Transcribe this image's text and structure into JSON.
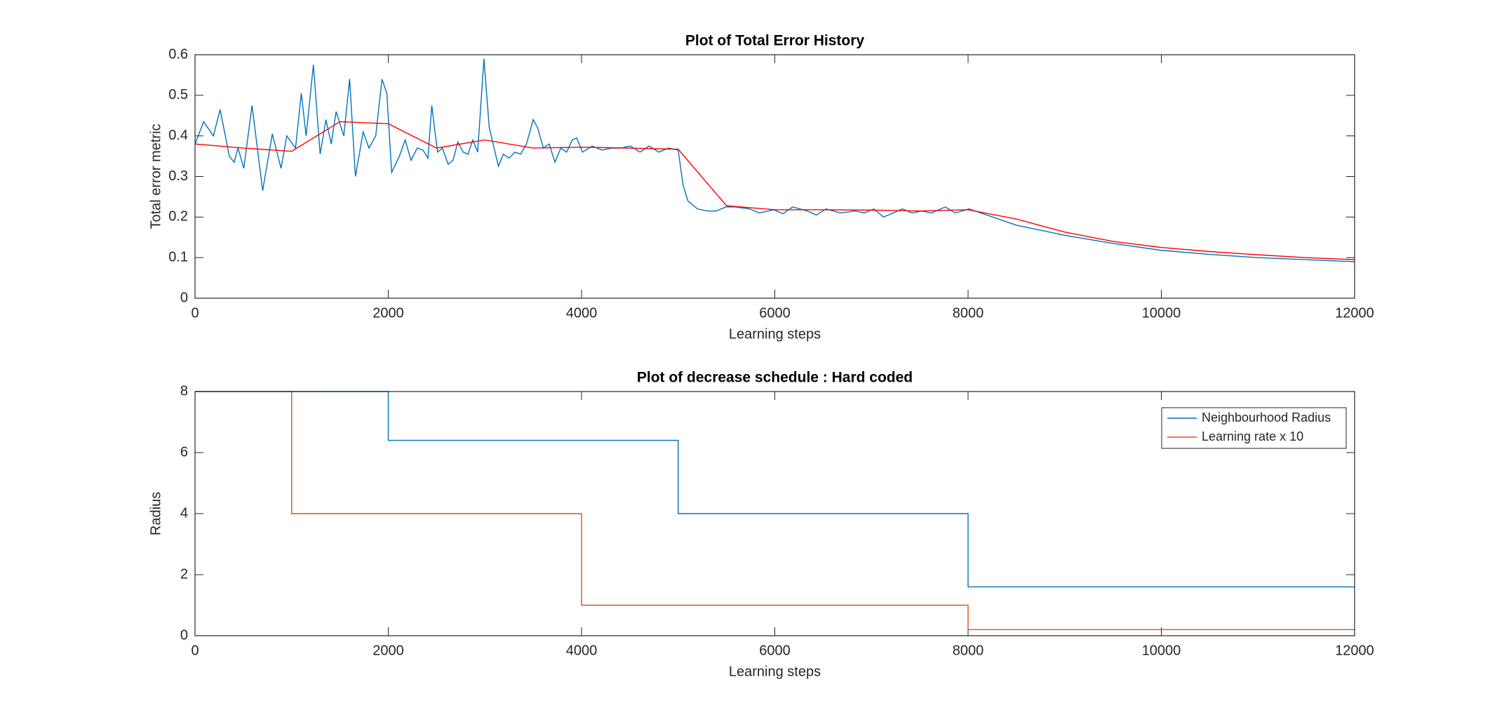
{
  "chart_data": [
    {
      "type": "line",
      "title": "Plot of Total Error History",
      "xlabel": "Learning steps",
      "ylabel": "Total error metric",
      "xlim": [
        0,
        12000
      ],
      "xticks": [
        0,
        2000,
        4000,
        6000,
        8000,
        10000,
        12000
      ],
      "ylim": [
        0,
        0.6
      ],
      "yticks": [
        0,
        0.1,
        0.2,
        0.3,
        0.4,
        0.5,
        0.6
      ],
      "series": [
        {
          "color": "#0072bd",
          "x": [
            0,
            90,
            190,
            260,
            355,
            405,
            445,
            505,
            590,
            700,
            800,
            890,
            950,
            1040,
            1100,
            1150,
            1225,
            1295,
            1355,
            1410,
            1460,
            1540,
            1600,
            1660,
            1740,
            1800,
            1870,
            1935,
            1985,
            2035,
            2115,
            2175,
            2235,
            2300,
            2360,
            2410,
            2450,
            2510,
            2560,
            2620,
            2670,
            2720,
            2775,
            2825,
            2875,
            2925,
            2990,
            3045,
            3095,
            3140,
            3190,
            3250,
            3310,
            3370,
            3430,
            3500,
            3545,
            3605,
            3665,
            3725,
            3785,
            3845,
            3905,
            3950,
            4010,
            4110,
            4210,
            4310,
            4405,
            4505,
            4605,
            4700,
            4800,
            4900,
            5000,
            5050,
            5100,
            5200,
            5300,
            5395,
            5495,
            5590,
            5740,
            5840,
            5990,
            6085,
            6185,
            6335,
            6430,
            6530,
            6680,
            6830,
            6925,
            7025,
            7125,
            7225,
            7320,
            7420,
            7520,
            7620,
            7765,
            7865,
            8010,
            8500,
            9000,
            9500,
            10000,
            10500,
            11000,
            11500,
            12000
          ],
          "values": [
            0.38,
            0.435,
            0.4,
            0.465,
            0.35,
            0.335,
            0.37,
            0.32,
            0.475,
            0.265,
            0.405,
            0.32,
            0.4,
            0.37,
            0.505,
            0.4,
            0.575,
            0.355,
            0.44,
            0.38,
            0.46,
            0.4,
            0.54,
            0.3,
            0.41,
            0.37,
            0.4,
            0.54,
            0.505,
            0.31,
            0.35,
            0.39,
            0.34,
            0.37,
            0.365,
            0.345,
            0.475,
            0.36,
            0.37,
            0.33,
            0.34,
            0.385,
            0.36,
            0.355,
            0.39,
            0.36,
            0.59,
            0.42,
            0.37,
            0.325,
            0.355,
            0.345,
            0.36,
            0.355,
            0.38,
            0.44,
            0.42,
            0.37,
            0.38,
            0.335,
            0.37,
            0.36,
            0.39,
            0.395,
            0.36,
            0.375,
            0.365,
            0.37,
            0.37,
            0.375,
            0.36,
            0.375,
            0.36,
            0.37,
            0.365,
            0.28,
            0.24,
            0.22,
            0.215,
            0.215,
            0.225,
            0.225,
            0.22,
            0.21,
            0.218,
            0.208,
            0.225,
            0.215,
            0.205,
            0.22,
            0.21,
            0.215,
            0.21,
            0.22,
            0.2,
            0.21,
            0.22,
            0.21,
            0.215,
            0.21,
            0.225,
            0.21,
            0.22,
            0.18,
            0.155,
            0.135,
            0.118,
            0.108,
            0.1,
            0.095,
            0.09
          ]
        },
        {
          "color": "#ff0000",
          "x": [
            0,
            500,
            1000,
            1500,
            2000,
            2500,
            3000,
            3500,
            4000,
            4500,
            5000,
            5500,
            6000,
            6500,
            7000,
            7500,
            8000,
            8500,
            9000,
            9500,
            10000,
            10500,
            11000,
            11500,
            12000
          ],
          "values": [
            0.38,
            0.37,
            0.362,
            0.435,
            0.43,
            0.37,
            0.39,
            0.37,
            0.372,
            0.37,
            0.367,
            0.228,
            0.218,
            0.218,
            0.217,
            0.215,
            0.218,
            0.195,
            0.163,
            0.14,
            0.125,
            0.115,
            0.107,
            0.1,
            0.095
          ]
        }
      ]
    },
    {
      "type": "step",
      "title": "Plot of decrease schedule : Hard coded",
      "xlabel": "Learning steps",
      "ylabel": "Radius",
      "xlim": [
        0,
        12000
      ],
      "xticks": [
        0,
        2000,
        4000,
        6000,
        8000,
        10000,
        12000
      ],
      "ylim": [
        0,
        8
      ],
      "yticks": [
        0,
        2,
        4,
        6,
        8
      ],
      "legend": "upper right",
      "series": [
        {
          "name": "Neighbourhood Radius",
          "color": "#0072bd",
          "x": [
            0,
            2000,
            5000,
            8000,
            12000
          ],
          "values": [
            8,
            6.4,
            4,
            1.6,
            1.6
          ]
        },
        {
          "name": "Learning rate x 10",
          "color": "#d95319",
          "x": [
            0,
            1000,
            4000,
            8000,
            12000
          ],
          "values": [
            8,
            4,
            1,
            0.2,
            0.2
          ]
        }
      ]
    }
  ]
}
